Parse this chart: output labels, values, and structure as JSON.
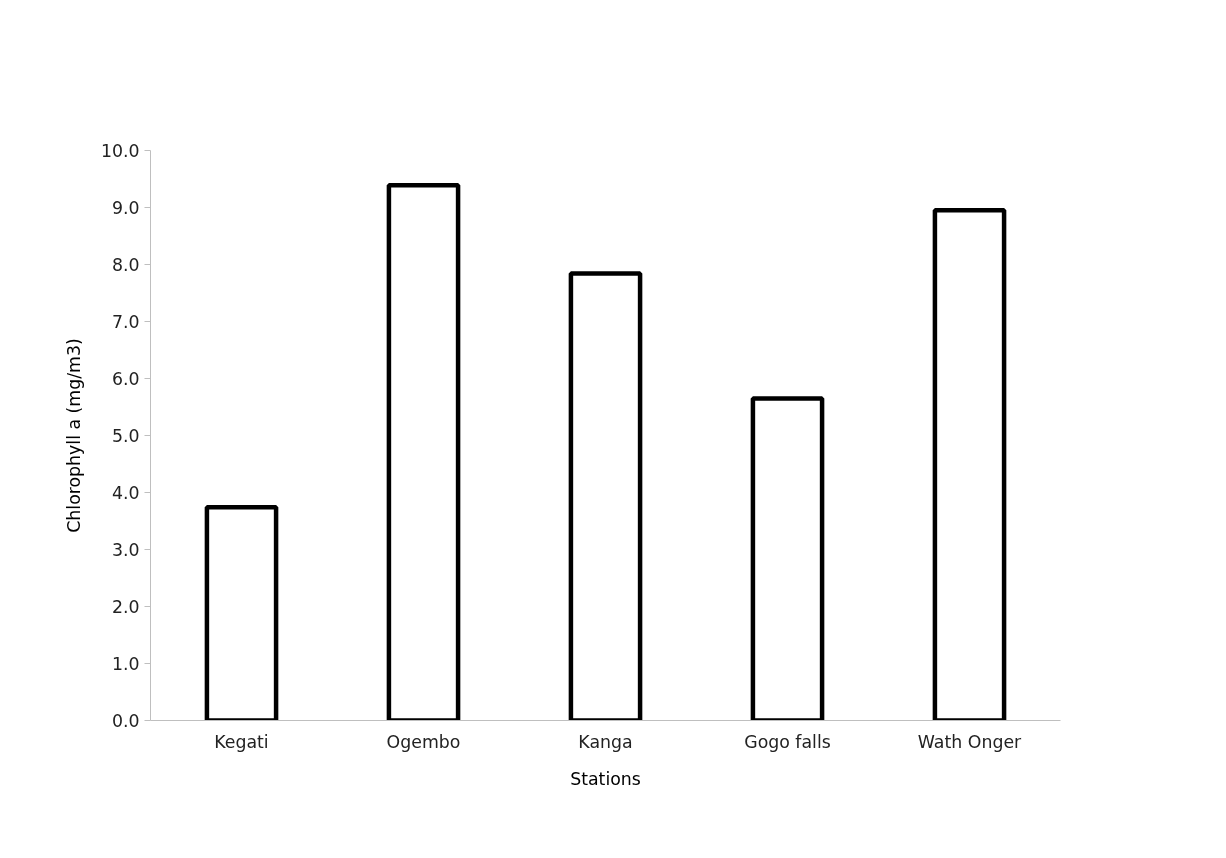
{
  "chart_data": {
    "type": "bar",
    "xlabel": "Stations",
    "ylabel": "Chlorophyll a (mg/m3)",
    "categories": [
      "Kegati",
      "Ogembo",
      "Kanga",
      "Gogo falls",
      "Wath Onger"
    ],
    "values": [
      3.74,
      9.39,
      7.84,
      5.65,
      8.95
    ],
    "color": "#ffffff",
    "ylim": [
      0,
      10
    ],
    "yticks": [
      {
        "value": 0,
        "label": "0.0"
      },
      {
        "value": 1,
        "label": "1.0"
      },
      {
        "value": 2,
        "label": "2.0"
      },
      {
        "value": 3,
        "label": "3.0"
      },
      {
        "value": 4,
        "label": "4.0"
      },
      {
        "value": 5,
        "label": "5.0"
      },
      {
        "value": 6,
        "label": "6.0"
      },
      {
        "value": 7,
        "label": "7.0"
      },
      {
        "value": 8,
        "label": "8.0"
      },
      {
        "value": 9,
        "label": "9.0"
      },
      {
        "value": 10,
        "label": "10.0"
      }
    ],
    "grid": false
  }
}
